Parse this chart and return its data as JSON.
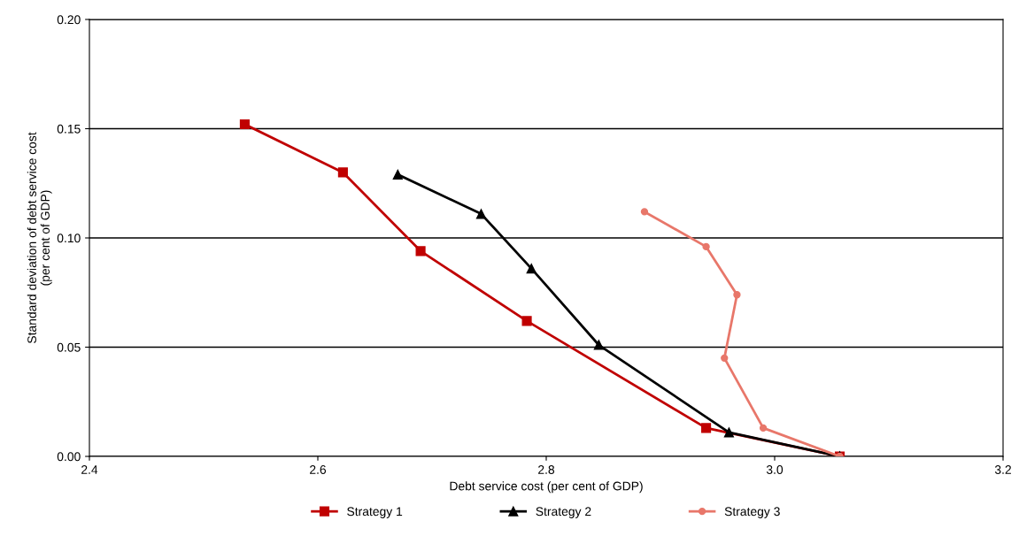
{
  "chart_data": {
    "type": "line",
    "xlabel": "Debt service cost (per cent of GDP)",
    "ylabel": "Standard deviation of debt service cost\n(per cent of GDP)",
    "xlim": [
      2.4,
      3.2
    ],
    "xticks": [
      {
        "value": 2.4,
        "label": "2.4"
      },
      {
        "value": 2.6,
        "label": "2.6"
      },
      {
        "value": 2.8,
        "label": "2.8"
      },
      {
        "value": 3.0,
        "label": "3.0"
      },
      {
        "value": 3.2,
        "label": "3.2"
      }
    ],
    "ylim": [
      0,
      0.2
    ],
    "yticks": [
      {
        "value": 0,
        "label": "0.00"
      },
      {
        "value": 0.05,
        "label": "0.05"
      },
      {
        "value": 0.1,
        "label": "0.10"
      },
      {
        "value": 0.15,
        "label": "0.15"
      },
      {
        "value": 0.2,
        "label": "0.20"
      }
    ],
    "grid": "y",
    "legend": "bottom",
    "series": [
      {
        "name": "Strategy 1",
        "color": "#c00000",
        "marker": "square",
        "x": [
          2.536,
          2.622,
          2.69,
          2.783,
          2.94,
          3.057
        ],
        "values": [
          0.152,
          0.13,
          0.094,
          0.062,
          0.013,
          0.0
        ]
      },
      {
        "name": "Strategy 2",
        "color": "#000000",
        "marker": "triangle",
        "x": [
          2.67,
          2.743,
          2.787,
          2.846,
          2.96,
          3.057
        ],
        "values": [
          0.129,
          0.111,
          0.086,
          0.051,
          0.011,
          0.0
        ]
      },
      {
        "name": "Strategy 3",
        "color": "#e8776a",
        "marker": "circle",
        "x": [
          2.886,
          2.94,
          2.967,
          2.956,
          2.99,
          3.057
        ],
        "values": [
          0.112,
          0.096,
          0.074,
          0.045,
          0.013,
          0.0
        ]
      }
    ]
  }
}
